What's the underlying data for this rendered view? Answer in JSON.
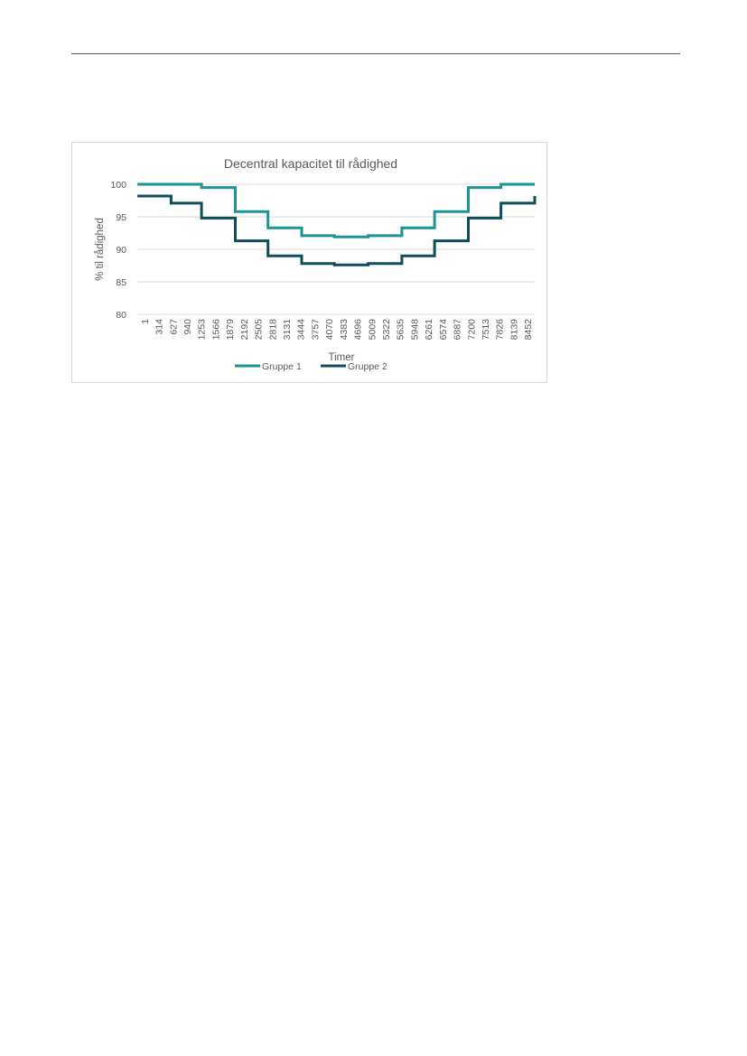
{
  "chart_data": {
    "type": "line",
    "title": "Decentral kapacitet til rådighed",
    "xlabel": "Timer",
    "ylabel": "% til rådighed",
    "ylim": [
      80,
      100
    ],
    "yticks": [
      80,
      85,
      90,
      95,
      100
    ],
    "grid": true,
    "legend_position": "bottom",
    "x_tick_labels": [
      "1",
      "314",
      "627",
      "940",
      "1253",
      "1566",
      "1879",
      "2192",
      "2505",
      "2818",
      "3131",
      "3444",
      "3757",
      "4070",
      "4383",
      "4696",
      "5009",
      "5322",
      "5635",
      "5948",
      "6261",
      "6574",
      "6887",
      "7200",
      "7513",
      "7826",
      "8139",
      "8452"
    ],
    "x_max": 8760,
    "series": [
      {
        "name": "Gruppe 1",
        "color": "#1a9494",
        "steps": [
          {
            "from": 1,
            "to": 744,
            "value": 100.0
          },
          {
            "from": 744,
            "to": 1416,
            "value": 100.0
          },
          {
            "from": 1416,
            "to": 2160,
            "value": 99.5
          },
          {
            "from": 2160,
            "to": 2880,
            "value": 95.8
          },
          {
            "from": 2880,
            "to": 3624,
            "value": 93.3
          },
          {
            "from": 3624,
            "to": 4344,
            "value": 92.1
          },
          {
            "from": 4344,
            "to": 5088,
            "value": 91.9
          },
          {
            "from": 5088,
            "to": 5832,
            "value": 92.1
          },
          {
            "from": 5832,
            "to": 6552,
            "value": 93.3
          },
          {
            "from": 6552,
            "to": 7296,
            "value": 95.8
          },
          {
            "from": 7296,
            "to": 8016,
            "value": 99.5
          },
          {
            "from": 8016,
            "to": 8760,
            "value": 100.0
          }
        ]
      },
      {
        "name": "Gruppe 2",
        "color": "#0f4c5c",
        "steps": [
          {
            "from": 1,
            "to": 744,
            "value": 98.2
          },
          {
            "from": 744,
            "to": 1416,
            "value": 97.1
          },
          {
            "from": 1416,
            "to": 2160,
            "value": 94.8
          },
          {
            "from": 2160,
            "to": 2880,
            "value": 91.3
          },
          {
            "from": 2880,
            "to": 3624,
            "value": 89.0
          },
          {
            "from": 3624,
            "to": 4344,
            "value": 87.8
          },
          {
            "from": 4344,
            "to": 5088,
            "value": 87.6
          },
          {
            "from": 5088,
            "to": 5832,
            "value": 87.8
          },
          {
            "from": 5832,
            "to": 6552,
            "value": 89.0
          },
          {
            "from": 6552,
            "to": 7296,
            "value": 91.3
          },
          {
            "from": 7296,
            "to": 8016,
            "value": 94.8
          },
          {
            "from": 8016,
            "to": 8760,
            "value": 97.1
          },
          {
            "from": 8760,
            "to": 8760,
            "value": 98.2
          }
        ]
      }
    ]
  }
}
